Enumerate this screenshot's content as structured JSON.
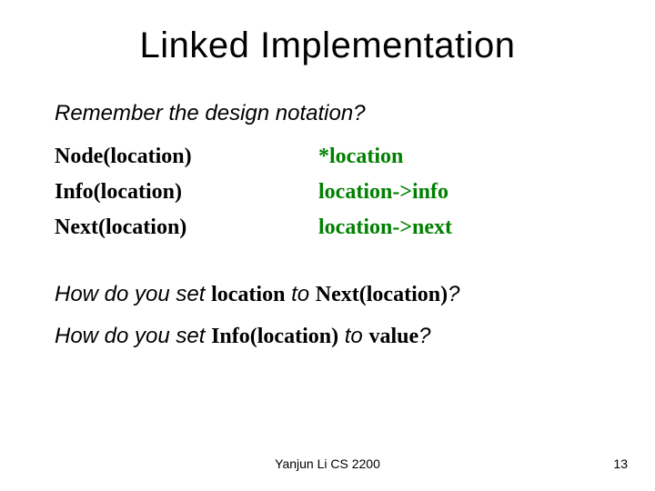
{
  "title": "Linked Implementation",
  "subtitle": "Remember the design notation?",
  "notation": {
    "rows": [
      {
        "left": "Node(location)",
        "right": "*location"
      },
      {
        "left": "Info(location)",
        "right": "location->info"
      },
      {
        "left": "Next(location)",
        "right": "location->next"
      }
    ],
    "left_color": "#000000",
    "right_color": "#008000",
    "font_family": "Comic Sans MS",
    "font_size_pt": 18,
    "font_weight": "bold"
  },
  "questions": {
    "q1": {
      "pre": "How do you set ",
      "code1": "location",
      "mid": " to ",
      "code2": "Next(location)",
      "post": "?"
    },
    "q2": {
      "pre": "How do you set ",
      "code1": "Info(location)",
      "mid": " to ",
      "code2": "value",
      "post": "?"
    }
  },
  "footer": {
    "center": "Yanjun Li CS 2200",
    "page": "13"
  },
  "style": {
    "background_color": "#ffffff",
    "title_fontsize": 40,
    "body_fontsize": 24,
    "footer_fontsize": 14
  }
}
